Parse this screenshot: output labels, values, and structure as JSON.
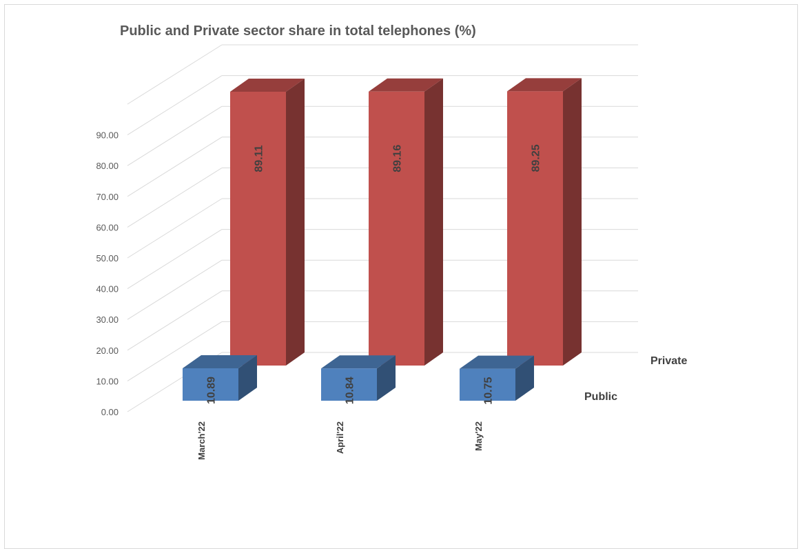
{
  "chart_data": {
    "type": "bar",
    "title": "Public and Private sector share in total telephones (%)",
    "categories": [
      "March'22",
      "April'22",
      "May'22"
    ],
    "series": [
      {
        "name": "Public",
        "values": [
          10.89,
          10.84,
          10.75
        ],
        "color": "#4f81bd"
      },
      {
        "name": "Private",
        "values": [
          89.11,
          89.16,
          89.25
        ],
        "color": "#c0504d"
      }
    ],
    "yticks": [
      "0.00",
      "10.00",
      "20.00",
      "30.00",
      "40.00",
      "50.00",
      "60.00",
      "70.00",
      "80.00",
      "90.00"
    ],
    "ylim": [
      0,
      100
    ],
    "grid": true,
    "style": "3d-column"
  }
}
